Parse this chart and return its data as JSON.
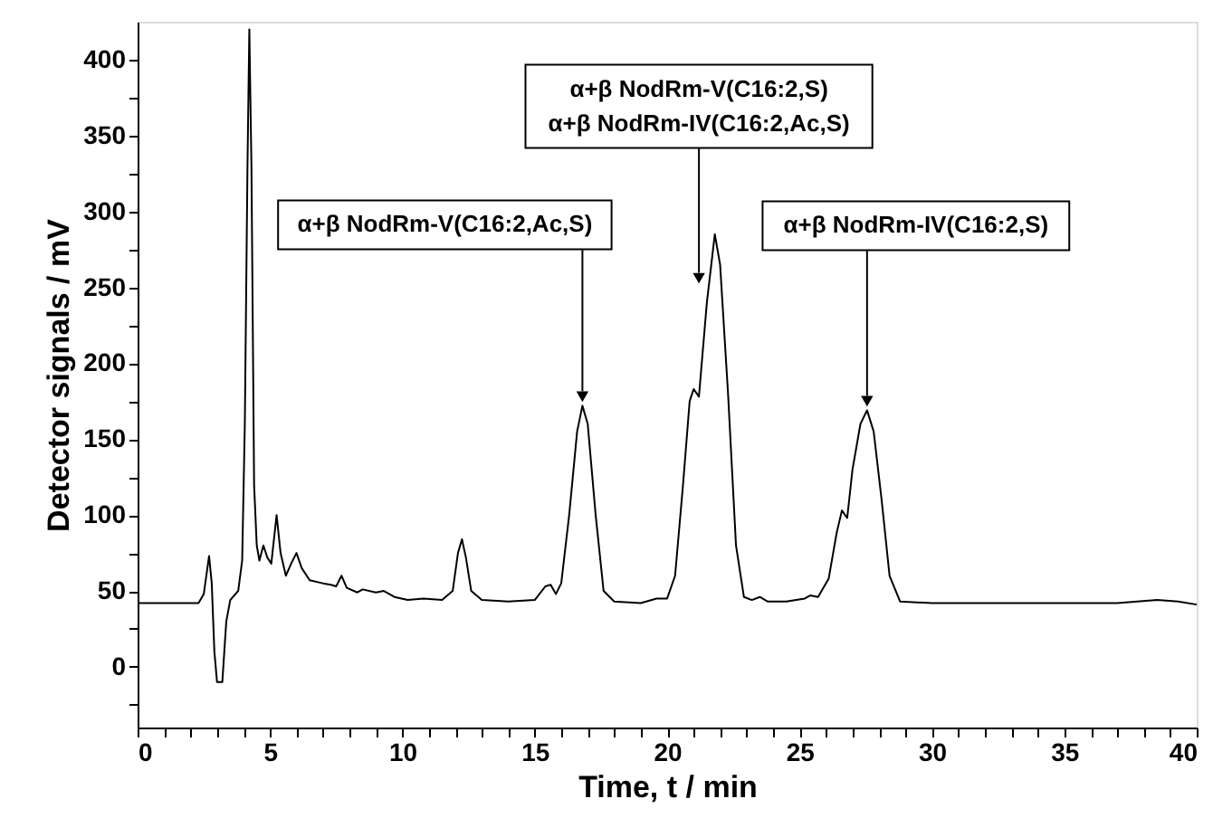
{
  "chart_data": {
    "type": "line",
    "xlabel": "Time, t / min",
    "ylabel": "Detector signals / mV",
    "color": "#000000",
    "line_style": "solid",
    "marker": "none",
    "grid": false,
    "xlim": [
      0,
      40
    ],
    "ylim": [
      -40,
      425
    ],
    "xticks": [
      0,
      {
        "value": 1,
        "label": null
      },
      {
        "value": 2,
        "label": null
      },
      {
        "value": 3,
        "label": null
      },
      {
        "value": 4,
        "label": null
      },
      5,
      {
        "value": 6,
        "label": null
      },
      {
        "value": 7,
        "label": null
      },
      {
        "value": 8,
        "label": null
      },
      {
        "value": 9,
        "label": null
      },
      10,
      {
        "value": 11,
        "label": null
      },
      {
        "value": 12,
        "label": null
      },
      {
        "value": 13,
        "label": null
      },
      {
        "value": 14,
        "label": null
      },
      15,
      {
        "value": 16,
        "label": null
      },
      {
        "value": 17,
        "label": null
      },
      {
        "value": 18,
        "label": null
      },
      {
        "value": 19,
        "label": null
      },
      20,
      {
        "value": 21,
        "label": null
      },
      {
        "value": 22,
        "label": null
      },
      {
        "value": 23,
        "label": null
      },
      {
        "value": 24,
        "label": null
      },
      25,
      {
        "value": 26,
        "label": null
      },
      {
        "value": 27,
        "label": null
      },
      {
        "value": 28,
        "label": null
      },
      {
        "value": 29,
        "label": null
      },
      30,
      {
        "value": 31,
        "label": null
      },
      {
        "value": 32,
        "label": null
      },
      {
        "value": 33,
        "label": null
      },
      {
        "value": 34,
        "label": null
      },
      35,
      {
        "value": 36,
        "label": null
      },
      {
        "value": 37,
        "label": null
      },
      {
        "value": 38,
        "label": null
      },
      {
        "value": 39,
        "label": null
      },
      40
    ],
    "yticks": [
      {
        "value": -25,
        "label": null
      },
      0,
      {
        "value": 25,
        "label": null
      },
      50,
      {
        "value": 75,
        "label": null
      },
      100,
      {
        "value": 125,
        "label": null
      },
      150,
      {
        "value": 175,
        "label": null
      },
      200,
      {
        "value": 225,
        "label": null
      },
      250,
      {
        "value": 275,
        "label": null
      },
      300,
      {
        "value": 325,
        "label": null
      },
      350,
      {
        "value": 375,
        "label": null
      },
      400
    ],
    "x": [
      0,
      2.3,
      2.5,
      2.7,
      2.8,
      2.9,
      3.0,
      3.2,
      3.35,
      3.5,
      3.8,
      3.95,
      4.05,
      4.15,
      4.22,
      4.3,
      4.4,
      4.5,
      4.6,
      4.75,
      4.9,
      5.05,
      5.25,
      5.4,
      5.6,
      5.8,
      6.0,
      6.2,
      6.5,
      7.0,
      7.3,
      7.5,
      7.7,
      7.9,
      8.3,
      8.5,
      9.0,
      9.3,
      9.7,
      10.2,
      10.8,
      11.5,
      11.9,
      12.1,
      12.25,
      12.4,
      12.6,
      13.0,
      14.0,
      15.0,
      15.4,
      15.6,
      15.8,
      16.0,
      16.3,
      16.6,
      16.8,
      17.0,
      17.3,
      17.6,
      18.0,
      19.0,
      19.6,
      20.0,
      20.3,
      20.6,
      20.85,
      21.0,
      21.2,
      21.5,
      21.8,
      22.0,
      22.3,
      22.6,
      22.9,
      23.2,
      23.5,
      23.8,
      24.5,
      25.2,
      25.4,
      25.7,
      26.1,
      26.4,
      26.6,
      26.8,
      27.0,
      27.3,
      27.55,
      27.8,
      28.1,
      28.4,
      28.8,
      30,
      32,
      35,
      37,
      38.5,
      39.3,
      40
    ],
    "values": [
      42,
      42,
      48,
      73,
      55,
      10,
      -10,
      -10,
      30,
      44,
      50,
      70,
      160,
      330,
      420,
      330,
      120,
      80,
      70,
      80,
      72,
      68,
      100,
      75,
      60,
      68,
      75,
      65,
      57,
      55,
      54,
      53,
      60,
      52,
      49,
      51,
      49,
      50,
      46,
      44,
      45,
      44,
      50,
      75,
      84,
      72,
      50,
      44,
      43,
      44,
      53,
      54,
      48,
      55,
      100,
      155,
      172,
      160,
      100,
      50,
      43,
      42,
      45,
      45,
      60,
      120,
      175,
      183,
      178,
      240,
      285,
      265,
      180,
      80,
      46,
      44,
      46,
      43,
      43,
      45,
      47,
      46,
      58,
      88,
      103,
      98,
      130,
      160,
      169,
      155,
      110,
      60,
      43,
      42,
      42,
      42,
      42,
      44,
      43,
      41
    ],
    "annotations": [
      {
        "text": "α+β NodRm-V(C16:2,Ac,S)",
        "x": 16.8,
        "y": 172
      },
      {
        "text": "α+β NodRm-V(C16:2,S)\nα+β NodRm-IV(C16:2,Ac,S)",
        "x": 21.2,
        "y": 250
      },
      {
        "text": "α+β NodRm-IV(C16:2,S)",
        "x": 27.55,
        "y": 169
      }
    ]
  }
}
